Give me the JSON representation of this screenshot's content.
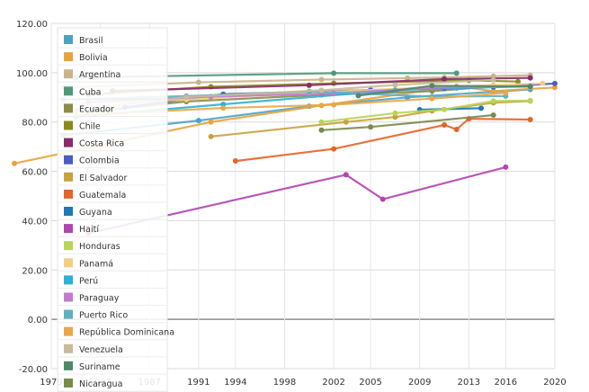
{
  "chart_data": {
    "type": "line",
    "title": "",
    "xlabel": "",
    "ylabel": "",
    "xlim": [
      1979,
      2020
    ],
    "ylim": [
      -20,
      120
    ],
    "x_ticks": [
      "1979",
      "1983",
      "1987",
      "1991",
      "1994",
      "1998",
      "2002",
      "2005",
      "2009",
      "2013",
      "2016",
      "2020"
    ],
    "y_ticks": [
      "120.00",
      "100.00",
      "80.00",
      "60.00",
      "40.00",
      "20.00",
      "0.00",
      "-20.00"
    ],
    "grid": true,
    "legend_placement": "top-left",
    "series": [
      {
        "name": "Brasil",
        "color": "#4aa3c7",
        "points": [
          [
            1980,
            74.6
          ],
          [
            1991,
            80.6
          ],
          [
            2000,
            86.4
          ],
          [
            2008,
            90.0
          ],
          [
            2015,
            92.3
          ],
          [
            2018,
            93.2
          ]
        ]
      },
      {
        "name": "Bolivia",
        "color": "#e8a33d",
        "points": [
          [
            1976,
            63.2
          ],
          [
            1992,
            80.0
          ],
          [
            2001,
            86.7
          ],
          [
            2012,
            94.5
          ],
          [
            2015,
            92.5
          ],
          [
            2020,
            94.0
          ]
        ]
      },
      {
        "name": "Argentina",
        "color": "#c9b38a",
        "points": [
          [
            1980,
            93.9
          ],
          [
            1991,
            96.1
          ],
          [
            2001,
            97.2
          ],
          [
            2008,
            97.8
          ],
          [
            2011,
            98.1
          ],
          [
            2015,
            98.6
          ],
          [
            2018,
            99.0
          ]
        ]
      },
      {
        "name": "Cuba",
        "color": "#4e9a78",
        "points": [
          [
            1981,
            98.0
          ],
          [
            2002,
            99.8
          ],
          [
            2012,
            99.8
          ]
        ]
      },
      {
        "name": "Ecuador",
        "color": "#8c8c4a",
        "points": [
          [
            1982,
            84.0
          ],
          [
            1990,
            88.3
          ],
          [
            2001,
            91.0
          ],
          [
            2010,
            92.5
          ],
          [
            2015,
            94.4
          ],
          [
            2018,
            94.7
          ]
        ]
      },
      {
        "name": "Chile",
        "color": "#8b8b1a",
        "points": [
          [
            1982,
            91.1
          ],
          [
            1992,
            94.3
          ],
          [
            2002,
            95.7
          ],
          [
            2013,
            96.9
          ],
          [
            2017,
            96.4
          ]
        ]
      },
      {
        "name": "Costa Rica",
        "color": "#8b2a6b",
        "points": [
          [
            1984,
            92.6
          ],
          [
            2000,
            94.9
          ],
          [
            2011,
            97.4
          ],
          [
            2018,
            97.9
          ]
        ]
      },
      {
        "name": "Colombia",
        "color": "#4b5cc4",
        "points": [
          [
            1985,
            86.0
          ],
          [
            1993,
            91.3
          ],
          [
            2005,
            93.0
          ],
          [
            2011,
            93.6
          ],
          [
            2015,
            94.2
          ],
          [
            2020,
            95.6
          ]
        ]
      },
      {
        "name": "El Salvador",
        "color": "#c9a23c",
        "points": [
          [
            1992,
            74.1
          ],
          [
            2003,
            80.0
          ],
          [
            2007,
            82.0
          ],
          [
            2010,
            84.5
          ],
          [
            2015,
            87.8
          ],
          [
            2018,
            88.5
          ]
        ]
      },
      {
        "name": "Guatemala",
        "color": "#e2652a",
        "points": [
          [
            1994,
            64.2
          ],
          [
            2002,
            69.1
          ],
          [
            2011,
            78.8
          ],
          [
            2012,
            77.0
          ],
          [
            2013,
            81.3
          ],
          [
            2018,
            81.0
          ]
        ]
      },
      {
        "name": "Guyana",
        "color": "#1f78b4",
        "points": [
          [
            2009,
            85.0
          ],
          [
            2014,
            85.6
          ]
        ]
      },
      {
        "name": "Haití",
        "color": "#b046b0",
        "points": [
          [
            1982,
            34.9
          ],
          [
            2003,
            58.6
          ],
          [
            2006,
            48.7
          ],
          [
            2016,
            61.7
          ]
        ]
      },
      {
        "name": "Honduras",
        "color": "#b8d45a",
        "points": [
          [
            2001,
            80.0
          ],
          [
            2007,
            83.6
          ],
          [
            2011,
            85.1
          ],
          [
            2015,
            88.5
          ],
          [
            2018,
            88.7
          ]
        ]
      },
      {
        "name": "Panamá",
        "color": "#f0d080",
        "points": [
          [
            1980,
            87.2
          ],
          [
            1990,
            89.1
          ],
          [
            2000,
            91.9
          ],
          [
            2010,
            94.1
          ],
          [
            2015,
            95.0
          ],
          [
            2019,
            95.7
          ]
        ]
      },
      {
        "name": "Perú",
        "color": "#2bb2d4",
        "points": [
          [
            1981,
            82.1
          ],
          [
            1993,
            87.2
          ],
          [
            2007,
            92.9
          ],
          [
            2012,
            93.8
          ],
          [
            2018,
            94.4
          ]
        ]
      },
      {
        "name": "Paraguay",
        "color": "#c37bd0",
        "points": [
          [
            1982,
            88.2
          ],
          [
            1992,
            90.3
          ],
          [
            2002,
            91.6
          ],
          [
            2010,
            93.9
          ],
          [
            2018,
            94.5
          ]
        ]
      },
      {
        "name": "Puerto Rico",
        "color": "#5fb0c0",
        "points": [
          [
            1980,
            89.1
          ],
          [
            1990,
            90.5
          ],
          [
            2000,
            92.4
          ],
          [
            2010,
            90.3
          ],
          [
            2016,
            90.5
          ]
        ]
      },
      {
        "name": "República Dominicana",
        "color": "#e8a848",
        "points": [
          [
            1981,
            82.7
          ],
          [
            1993,
            85.7
          ],
          [
            2002,
            87.0
          ],
          [
            2010,
            89.5
          ],
          [
            2016,
            91.8
          ]
        ]
      },
      {
        "name": "Venezuela",
        "color": "#c8bb9c",
        "points": [
          [
            1981,
            84.7
          ],
          [
            1990,
            90.1
          ],
          [
            2001,
            92.9
          ],
          [
            2007,
            95.0
          ],
          [
            2015,
            97.1
          ]
        ]
      },
      {
        "name": "Suriname",
        "color": "#4e8a68",
        "points": [
          [
            2004,
            90.7
          ],
          [
            2010,
            94.7
          ],
          [
            2018,
            94.4
          ]
        ]
      },
      {
        "name": "Nicaragua",
        "color": "#7a8a4a",
        "points": [
          [
            2001,
            76.7
          ],
          [
            2005,
            78.0
          ],
          [
            2015,
            82.8
          ]
        ]
      }
    ]
  }
}
